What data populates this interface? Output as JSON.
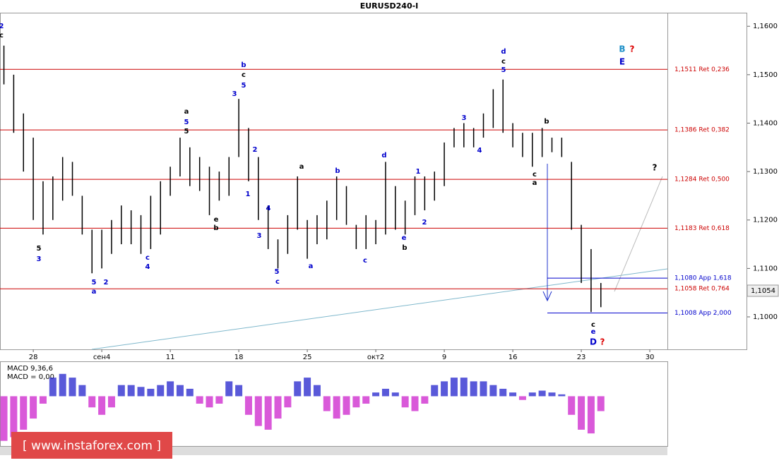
{
  "chart_data": {
    "type": "ohlc",
    "title": "EURUSD240-I",
    "x": [
      -3,
      -2,
      -1,
      0,
      1,
      2,
      3,
      4,
      5,
      6,
      7,
      8,
      9,
      10,
      11,
      12,
      13,
      14,
      15,
      16,
      17,
      18,
      19,
      20,
      21,
      22,
      23,
      24,
      25,
      26,
      27,
      28,
      29,
      30,
      31,
      32,
      33,
      34,
      35,
      36,
      37,
      38,
      39,
      40,
      41,
      42,
      43,
      44,
      45,
      46,
      47,
      48,
      49,
      50,
      51,
      52,
      53,
      54,
      55,
      56,
      57,
      58
    ],
    "high": [
      1.156,
      1.15,
      1.142,
      1.137,
      1.128,
      1.129,
      1.133,
      1.132,
      1.125,
      1.118,
      1.118,
      1.12,
      1.123,
      1.122,
      1.121,
      1.125,
      1.128,
      1.131,
      1.137,
      1.135,
      1.133,
      1.131,
      1.13,
      1.133,
      1.145,
      1.139,
      1.133,
      1.123,
      1.116,
      1.121,
      1.129,
      1.12,
      1.121,
      1.124,
      1.129,
      1.127,
      1.119,
      1.121,
      1.12,
      1.132,
      1.127,
      1.124,
      1.129,
      1.129,
      1.13,
      1.136,
      1.139,
      1.14,
      1.139,
      1.142,
      1.147,
      1.149,
      1.14,
      1.138,
      1.138,
      1.139,
      1.137,
      1.137,
      1.132,
      1.119,
      1.114,
      1.107
    ],
    "low": [
      1.148,
      1.138,
      1.13,
      1.12,
      1.117,
      1.12,
      1.124,
      1.125,
      1.117,
      1.109,
      1.11,
      1.113,
      1.115,
      1.115,
      1.113,
      1.114,
      1.117,
      1.125,
      1.129,
      1.127,
      1.126,
      1.121,
      1.124,
      1.125,
      1.133,
      1.128,
      1.12,
      1.114,
      1.11,
      1.113,
      1.118,
      1.112,
      1.115,
      1.116,
      1.12,
      1.119,
      1.114,
      1.114,
      1.115,
      1.117,
      1.118,
      1.117,
      1.121,
      1.122,
      1.124,
      1.127,
      1.135,
      1.135,
      1.135,
      1.137,
      1.139,
      1.138,
      1.135,
      1.133,
      1.131,
      1.133,
      1.134,
      1.133,
      1.118,
      1.107,
      1.101,
      1.102
    ],
    "color": "#000000",
    "xlim": [
      -3.4,
      64.8
    ],
    "xticks": [
      {
        "value": 0,
        "label": "28"
      },
      {
        "value": 7,
        "label": "сен4"
      },
      {
        "value": 14,
        "label": "11"
      },
      {
        "value": 21,
        "label": "18"
      },
      {
        "value": 28,
        "label": "25"
      },
      {
        "value": 35,
        "label": "окт2"
      },
      {
        "value": 42,
        "label": "9"
      },
      {
        "value": 49,
        "label": "16"
      },
      {
        "value": 56,
        "label": "23"
      },
      {
        "value": 63,
        "label": "30"
      }
    ],
    "ylim": [
      1.0933,
      1.1628
    ],
    "yticks": [
      {
        "value": 1.16,
        "label": "1,1600"
      },
      {
        "value": 1.15,
        "label": "1,1500"
      },
      {
        "value": 1.14,
        "label": "1,1400"
      },
      {
        "value": 1.13,
        "label": "1,1300"
      },
      {
        "value": 1.12,
        "label": "1,1200"
      },
      {
        "value": 1.11,
        "label": "1,1100"
      },
      {
        "value": 1.1,
        "label": "1,1000"
      }
    ],
    "current_price": {
      "value": 1.1054,
      "label": "1,1054"
    },
    "levels": [
      {
        "value": 1.1511,
        "label": "1,1511 Ret 0,236",
        "color": "#cc0000"
      },
      {
        "value": 1.1386,
        "label": "1,1386 Ret 0,382",
        "color": "#cc0000"
      },
      {
        "value": 1.1284,
        "label": "1,1284 Ret 0,500",
        "color": "#cc0000"
      },
      {
        "value": 1.1183,
        "label": "1,1183 Ret 0,618",
        "color": "#cc0000"
      },
      {
        "value": 1.1058,
        "label": "1,1058 Ret 0,764",
        "color": "#cc0000"
      },
      {
        "value": 1.108,
        "label": "1,1080 App 1,618",
        "color": "#0000cc"
      },
      {
        "value": 1.1008,
        "label": "1,1008 App 2,000",
        "color": "#0000cc"
      }
    ],
    "annotations": [
      "2",
      "c",
      "b",
      "c",
      "5",
      "3",
      "d",
      "c",
      "5",
      "B",
      "?",
      "E",
      "a",
      "5",
      "5",
      "b",
      "a",
      "b",
      "d",
      "1",
      "2",
      "3",
      "4",
      "c",
      "a",
      "e",
      "b",
      "b",
      "e",
      "5",
      "c",
      "5",
      "a",
      "2",
      "c",
      "e",
      "D",
      "?",
      "?",
      "3",
      "5",
      "4",
      "c",
      "1",
      "2",
      "4",
      "3",
      "c",
      "a"
    ],
    "macd": {
      "title": "MACD 9,36,6",
      "readout": "MACD = 0,00",
      "values": [
        -1.2,
        -1.1,
        -0.9,
        -0.6,
        -0.2,
        0.5,
        0.6,
        0.5,
        0.3,
        -0.3,
        -0.5,
        -0.3,
        0.3,
        0.3,
        0.25,
        0.2,
        0.3,
        0.4,
        0.3,
        0.2,
        -0.2,
        -0.3,
        -0.2,
        0.4,
        0.3,
        -0.5,
        -0.8,
        -0.9,
        -0.6,
        -0.3,
        0.4,
        0.5,
        0.3,
        -0.4,
        -0.6,
        -0.5,
        -0.3,
        -0.2,
        0.1,
        0.2,
        0.1,
        -0.3,
        -0.4,
        -0.2,
        0.3,
        0.4,
        0.5,
        0.5,
        0.4,
        0.4,
        0.3,
        0.2,
        0.1,
        -0.1,
        0.1,
        0.15,
        0.1,
        0.05,
        -0.5,
        -0.9,
        -1.0,
        -0.4
      ],
      "ylim": [
        -1.3,
        0.9
      ],
      "up_color": "#2222cc",
      "down_color": "#cc22cc"
    },
    "watermark": "[ www.instaforex.com ]"
  }
}
